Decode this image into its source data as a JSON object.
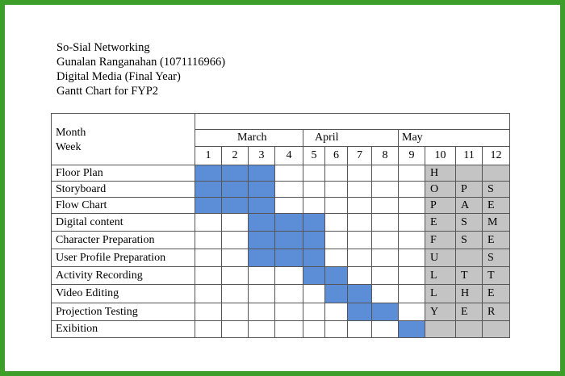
{
  "header": {
    "lines": [
      "So-Sial Networking",
      "Gunalan Ranganahan (1071116966)",
      "Digital Media (Final Year)",
      "Gantt Chart for FYP2"
    ]
  },
  "chart_data": {
    "type": "table",
    "corner_month": "Month",
    "corner_week": "Week",
    "months": [
      {
        "label": "March",
        "span": 4
      },
      {
        "label": "April",
        "span": 4
      },
      {
        "label": "May",
        "span": 4
      }
    ],
    "weeks": [
      "1",
      "2",
      "3",
      "4",
      "5",
      "6",
      "7",
      "8",
      "9",
      "10",
      "11",
      "12"
    ],
    "colors": {
      "task": "#5b8ed6",
      "break": "#c4c4c4",
      "border": "#3d9e2a"
    },
    "tasks": [
      {
        "name": "Floor Plan",
        "weeks": [
          1,
          2,
          3
        ]
      },
      {
        "name": "Storyboard",
        "weeks": [
          1,
          2,
          3
        ]
      },
      {
        "name": "Flow Chart",
        "weeks": [
          1,
          2,
          3
        ]
      },
      {
        "name": "Digital content",
        "weeks": [
          3,
          4,
          5
        ]
      },
      {
        "name": "Character Preparation",
        "weeks": [
          3,
          4,
          5
        ]
      },
      {
        "name": "User Profile Preparation",
        "weeks": [
          3,
          4,
          5
        ]
      },
      {
        "name": "Activity Recording",
        "weeks": [
          5,
          6
        ]
      },
      {
        "name": "Video Editing",
        "weeks": [
          6,
          7
        ]
      },
      {
        "name": "Projection Testing",
        "weeks": [
          7,
          8
        ]
      },
      {
        "name": "Exibition",
        "weeks": [
          9
        ]
      }
    ],
    "break_weeks": [
      10,
      11,
      12
    ],
    "break_letters": {
      "10": [
        "H",
        "O",
        "P",
        "E",
        "F",
        "U",
        "L",
        "L",
        "Y",
        ""
      ],
      "11": [
        "",
        "P",
        "A",
        "S",
        "S",
        "",
        "T",
        "H",
        "E",
        ""
      ],
      "12": [
        "",
        "S",
        "E",
        "M",
        "E",
        "S",
        "T",
        "E",
        "R",
        ""
      ]
    }
  }
}
